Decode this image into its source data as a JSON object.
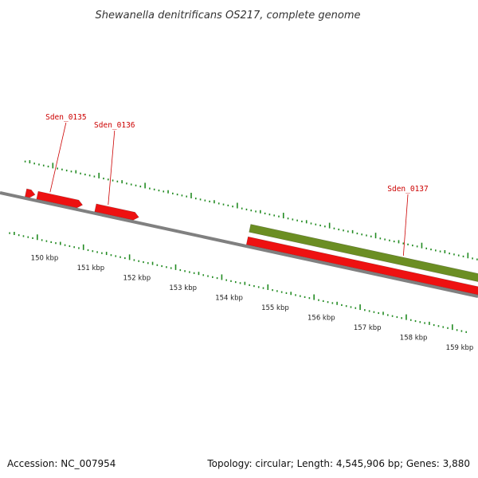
{
  "title": "Shewanella denitrificans OS217, complete genome",
  "footer": {
    "accession": "Accession: NC_007954",
    "summary": "Topology: circular; Length: 4,545,906 bp; Genes: 3,880"
  },
  "colors": {
    "gene_forward": "#ee1111",
    "gene_highlight": "#6b8e23",
    "backbone": "#808080",
    "tick": "#228b22",
    "label": "#cc0000"
  },
  "genes": [
    {
      "id": "partial",
      "label": "",
      "start_kbp": 149.55,
      "end_kbp": 149.75,
      "strand": "+",
      "color": "#ee1111"
    },
    {
      "id": "Sden_0135",
      "label": "Sden_0135",
      "start_kbp": 149.8,
      "end_kbp": 150.78,
      "strand": "+",
      "color": "#ee1111"
    },
    {
      "id": "Sden_0136",
      "label": "Sden_0136",
      "start_kbp": 151.06,
      "end_kbp": 152.0,
      "strand": "+",
      "color": "#ee1111"
    },
    {
      "id": "Sden_0137",
      "label": "Sden_0137",
      "start_kbp": 154.35,
      "end_kbp": 159.5,
      "strand": "+",
      "color": "#ee1111",
      "highlight_color": "#6b8e23"
    }
  ],
  "ruler": {
    "labels": [
      "150 kbp",
      "151 kbp",
      "152 kbp",
      "153 kbp",
      "154 kbp",
      "155 kbp",
      "156 kbp",
      "157 kbp",
      "158 kbp",
      "159 kbp"
    ],
    "label_kbp": [
      150,
      151,
      152,
      153,
      154,
      155,
      156,
      157,
      158,
      159
    ]
  }
}
